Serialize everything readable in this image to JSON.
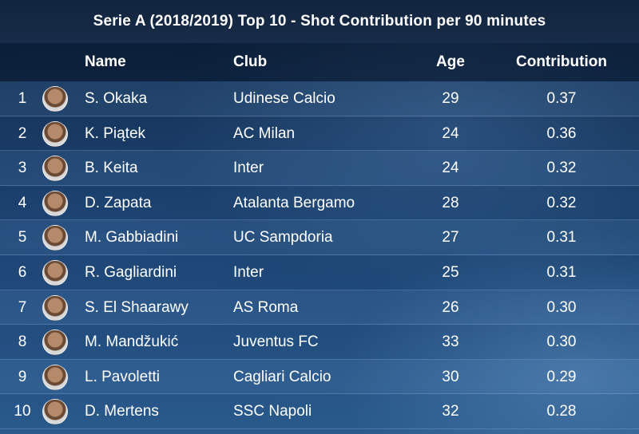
{
  "title": "Serie A (2018/2019) Top 10 - Shot Contribution per 90 minutes",
  "columns": {
    "name": "Name",
    "club": "Club",
    "age": "Age",
    "contribution": "Contribution"
  },
  "chart_data": {
    "type": "table",
    "title": "Serie A (2018/2019) Top 10 - Shot Contribution per 90 minutes",
    "columns": [
      "",
      "",
      "Name",
      "Club",
      "Age",
      "Contribution"
    ],
    "rows": [
      {
        "rank": "1",
        "name": "S. Okaka",
        "club": "Udinese Calcio",
        "age": "29",
        "contribution": "0.37"
      },
      {
        "rank": "2",
        "name": "K. Piątek",
        "club": "AC Milan",
        "age": "24",
        "contribution": "0.36"
      },
      {
        "rank": "3",
        "name": "B. Keita",
        "club": "Inter",
        "age": "24",
        "contribution": "0.32"
      },
      {
        "rank": "4",
        "name": "D. Zapata",
        "club": "Atalanta Bergamo",
        "age": "28",
        "contribution": "0.32"
      },
      {
        "rank": "5",
        "name": "M. Gabbiadini",
        "club": "UC Sampdoria",
        "age": "27",
        "contribution": "0.31"
      },
      {
        "rank": "6",
        "name": "R. Gagliardini",
        "club": "Inter",
        "age": "25",
        "contribution": "0.31"
      },
      {
        "rank": "7",
        "name": "S. El Shaarawy",
        "club": "AS Roma",
        "age": "26",
        "contribution": "0.30"
      },
      {
        "rank": "8",
        "name": "M. Mandžukić",
        "club": "Juventus FC",
        "age": "33",
        "contribution": "0.30"
      },
      {
        "rank": "9",
        "name": "L. Pavoletti",
        "club": "Cagliari Calcio",
        "age": "30",
        "contribution": "0.29"
      },
      {
        "rank": "10",
        "name": "D. Mertens",
        "club": "SSC Napoli",
        "age": "32",
        "contribution": "0.28"
      }
    ]
  }
}
